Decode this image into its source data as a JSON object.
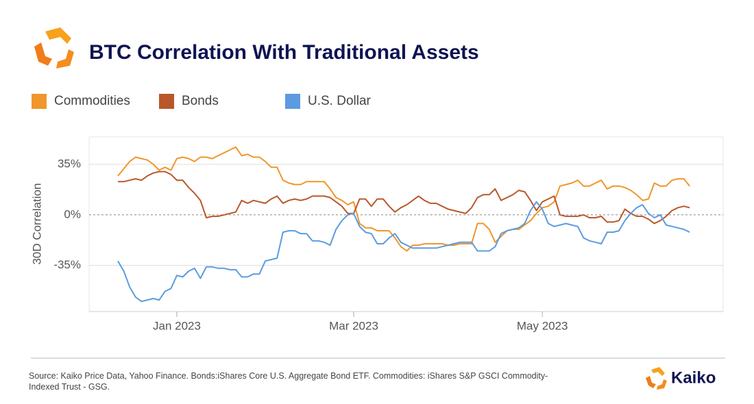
{
  "chart_data": {
    "type": "line",
    "title": "BTC Correlation With Traditional Assets",
    "y_label": "30D Correlation",
    "source": "Source: Kaiko Price Data, Yahoo Finance. Bonds:iShares Core U.S. Aggregate Bond ETF. Commodities: iShares S&P GSCI Commodity-Indexed Trust - GSG.",
    "brand": "Kaiko",
    "legend": "top",
    "grid": true,
    "ylim": [
      -67,
      54
    ],
    "yticks": [
      {
        "value": -35,
        "label": "-35%"
      },
      {
        "value": 0,
        "label": "0%"
      },
      {
        "value": 35,
        "label": "35%"
      }
    ],
    "categories": [
      null,
      null,
      null,
      null,
      null,
      null,
      null,
      null,
      null,
      null,
      "Jan 2023",
      null,
      null,
      null,
      null,
      null,
      null,
      null,
      null,
      null,
      null,
      null,
      null,
      null,
      null,
      null,
      null,
      null,
      null,
      null,
      null,
      null,
      null,
      null,
      null,
      null,
      null,
      null,
      null,
      null,
      "Mar 2023",
      null,
      null,
      null,
      null,
      null,
      null,
      null,
      null,
      null,
      null,
      null,
      null,
      null,
      null,
      null,
      null,
      null,
      null,
      null,
      null,
      null,
      null,
      null,
      null,
      null,
      null,
      null,
      null,
      null,
      null,
      null,
      "May 2023",
      null,
      null,
      null,
      null,
      null,
      null,
      null,
      null,
      null,
      null,
      null,
      null,
      null,
      null,
      null,
      null,
      null,
      null,
      null,
      null,
      null,
      null,
      null,
      null,
      null
    ],
    "series": [
      {
        "name": "Commodities",
        "color": "#f0962a",
        "values": [
          27,
          32,
          37,
          40,
          39,
          38,
          35,
          31,
          33,
          31,
          39,
          40,
          39,
          37,
          40,
          40,
          39,
          41,
          43,
          45,
          47,
          41,
          42,
          40,
          40,
          37,
          33,
          33,
          24,
          22,
          21,
          21,
          23,
          23,
          23,
          23,
          18,
          12,
          10,
          7,
          9,
          -6,
          -9,
          -9,
          -11,
          -11,
          -11,
          -16,
          -22,
          -25,
          -21,
          -21,
          -20,
          -20,
          -20,
          -20,
          -21,
          -21,
          -20,
          -20,
          -20,
          -6,
          -6,
          -10,
          -19,
          -15,
          -11,
          -10,
          -10,
          -7,
          -4,
          1,
          5,
          6,
          9,
          20,
          21,
          22,
          24,
          20,
          20,
          22,
          24,
          18,
          20,
          20,
          19,
          17,
          14,
          10,
          11,
          22,
          20,
          20,
          24,
          25,
          25,
          20
        ]
      },
      {
        "name": "Bonds",
        "color": "#b9572a",
        "values": [
          23,
          23,
          24,
          25,
          24,
          27,
          29,
          30,
          30,
          28,
          24,
          24,
          19,
          15,
          10,
          -2,
          -1,
          -1,
          0,
          1,
          2,
          10,
          8,
          10,
          9,
          8,
          11,
          13,
          8,
          10,
          11,
          10,
          11,
          13,
          13,
          13,
          12,
          9,
          6,
          1,
          1,
          11,
          11,
          6,
          11,
          11,
          6,
          2,
          5,
          7,
          10,
          13,
          10,
          8,
          8,
          6,
          4,
          3,
          2,
          1,
          5,
          12,
          14,
          14,
          18,
          10,
          12,
          14,
          17,
          16,
          10,
          3,
          9,
          11,
          13,
          0,
          -1,
          -1,
          -1,
          0,
          -2,
          -2,
          -1,
          -5,
          -5,
          -4,
          4,
          1,
          -1,
          -1,
          -3,
          -6,
          -4,
          -1,
          3,
          5,
          6,
          5
        ]
      },
      {
        "name": "U.S. Dollar",
        "color": "#5b9be0",
        "values": [
          -32,
          -39,
          -50,
          -57,
          -60,
          -59,
          -58,
          -59,
          -53,
          -51,
          -42,
          -43,
          -39,
          -37,
          -44,
          -36,
          -36,
          -37,
          -37,
          -38,
          -38,
          -43,
          -43,
          -41,
          -41,
          -32,
          -31,
          -30,
          -12,
          -11,
          -11,
          -13,
          -13,
          -18,
          -18,
          -19,
          -21,
          -10,
          -4,
          0,
          1,
          -8,
          -12,
          -13,
          -20,
          -20,
          -16,
          -13,
          -19,
          -21,
          -23,
          -23,
          -23,
          -23,
          -23,
          -22,
          -21,
          -20,
          -19,
          -19,
          -19,
          -25,
          -25,
          -25,
          -22,
          -13,
          -11,
          -10,
          -9,
          -6,
          3,
          9,
          4,
          -6,
          -8,
          -7,
          -6,
          -7,
          -8,
          -16,
          -18,
          -19,
          -20,
          -12,
          -12,
          -11,
          -4,
          1,
          5,
          7,
          1,
          -2,
          0,
          -7,
          -8,
          -9,
          -10,
          -12
        ]
      }
    ]
  }
}
